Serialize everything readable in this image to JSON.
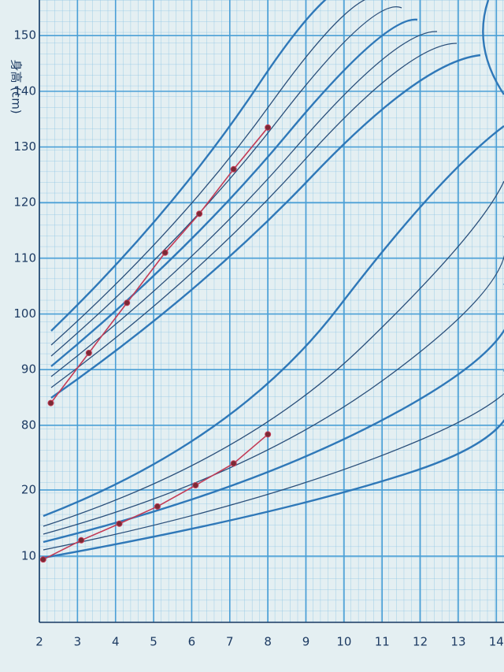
{
  "chart_data": {
    "type": "line",
    "y_label": "身高 (cm)",
    "xlim": [
      2,
      14.2
    ],
    "xticks": [
      2,
      3,
      4,
      5,
      6,
      7,
      8,
      9,
      10,
      11,
      12,
      13,
      14
    ],
    "ylim": [
      44.6,
      156.4
    ],
    "yticks": [
      80,
      90,
      100,
      110,
      120,
      130,
      140,
      150
    ],
    "y2lim": [
      0,
      94
    ],
    "y2ticks": [
      10,
      20
    ],
    "grid": true,
    "series": [
      {
        "color": "#c33a55",
        "x": [
          2.3,
          3.3,
          4.3,
          5.3,
          6.2,
          7.1,
          8
        ],
        "values": [
          84,
          93,
          102,
          111,
          118,
          126,
          133.5
        ]
      },
      {
        "color": "#c33a55",
        "axis": "y2",
        "x": [
          2.1,
          3.1,
          4.1,
          5.1,
          6.1,
          7.1,
          8
        ],
        "values": [
          9.5,
          12.4,
          14.9,
          17.5,
          20.7,
          24,
          28.4
        ]
      }
    ]
  }
}
